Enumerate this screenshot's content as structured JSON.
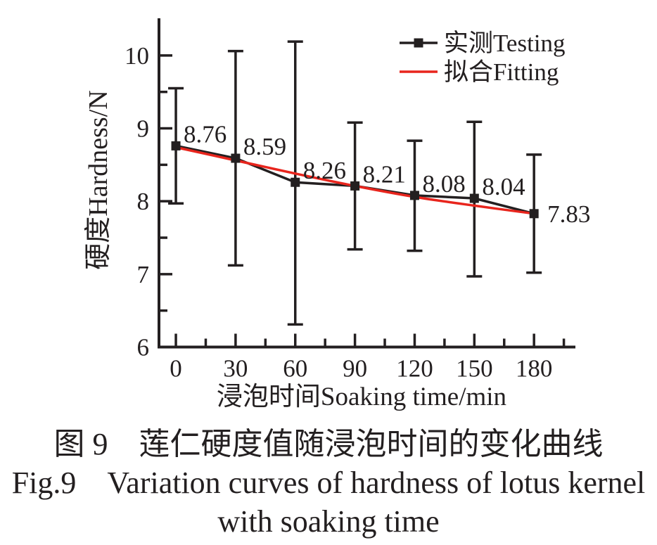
{
  "figure": {
    "background": "#ffffff",
    "ink_color": "#231f20"
  },
  "chart_data": {
    "type": "line",
    "title": "",
    "xlabel": "浸泡时间Soaking time/min",
    "ylabel": "硬度Hardness/N",
    "x": [
      0,
      30,
      60,
      90,
      120,
      150,
      180
    ],
    "x_tick_labels": [
      "0",
      "30",
      "60",
      "90",
      "120",
      "150",
      "180"
    ],
    "x_minor_ticks": [
      15,
      45,
      75,
      105,
      135,
      165,
      195
    ],
    "y_major_ticks": [
      6,
      7,
      8,
      9,
      10
    ],
    "y_tick_labels": [
      "6",
      "7",
      "8",
      "9",
      "10"
    ],
    "y_minor_ticks": [
      6.5,
      7.5,
      8.5,
      9.5
    ],
    "xlim": [
      -8.5,
      200.8
    ],
    "ylim": [
      6,
      10.51
    ],
    "grid": false,
    "legend_position": "top-right",
    "series": [
      {
        "name": "实测Testing",
        "color": "#231f20",
        "marker": "square",
        "values": [
          8.76,
          8.59,
          8.26,
          8.21,
          8.08,
          8.04,
          7.83
        ],
        "error_low": [
          7.97,
          7.12,
          6.31,
          7.34,
          7.32,
          6.97,
          7.02
        ],
        "error_high": [
          9.55,
          10.06,
          10.19,
          9.08,
          8.83,
          9.09,
          8.64
        ],
        "point_labels": [
          "8.76",
          "8.59",
          "8.26",
          "8.21",
          "8.08",
          "8.04",
          "7.83"
        ]
      },
      {
        "name": "拟合Fitting",
        "color": "#e8251d",
        "marker": "none",
        "values": [
          8.74,
          8.56,
          8.38,
          8.21,
          8.06,
          7.94,
          7.83
        ]
      }
    ]
  },
  "caption": {
    "zh": "图 9　莲仁硬度值随浸泡时间的变化曲线",
    "en_line1": "Fig.9 Variation curves of hardness of lotus kernel",
    "en_line2": "with soaking time"
  }
}
